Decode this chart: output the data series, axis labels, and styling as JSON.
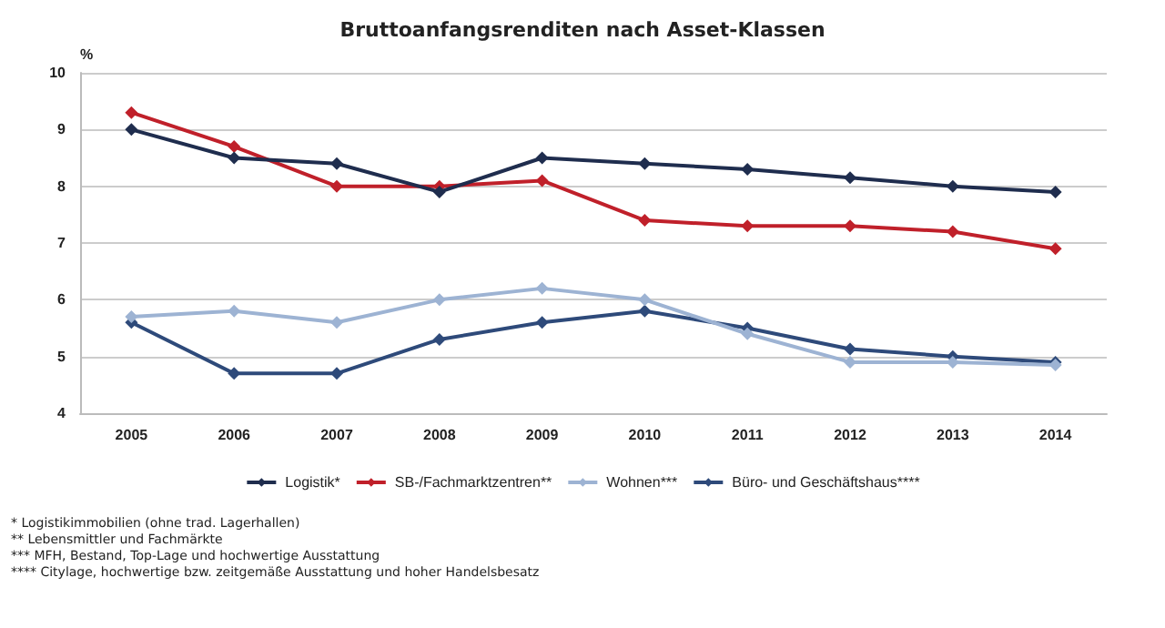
{
  "chart_data": {
    "type": "line",
    "title": "Bruttoanfangsrenditen nach Asset-Klassen",
    "ylabel": "%",
    "categories": [
      "2005",
      "2006",
      "2007",
      "2008",
      "2009",
      "2010",
      "2011",
      "2012",
      "2013",
      "2014"
    ],
    "series": [
      {
        "name": "Logistik*",
        "color": "#1f2d4e",
        "values": [
          9.0,
          8.5,
          8.4,
          7.9,
          8.5,
          8.4,
          8.3,
          8.15,
          8.0,
          7.9
        ]
      },
      {
        "name": "SB-/Fachmarktzentren**",
        "color": "#c0202a",
        "values": [
          9.3,
          8.7,
          8.0,
          8.0,
          8.1,
          7.4,
          7.3,
          7.3,
          7.2,
          6.9
        ]
      },
      {
        "name": "Wohnen***",
        "color": "#9db3d3",
        "values": [
          5.7,
          5.8,
          5.6,
          6.0,
          6.2,
          6.0,
          5.4,
          4.9,
          4.9,
          4.85
        ]
      },
      {
        "name": "Büro- und Geschäftshaus****",
        "color": "#2e4a7a",
        "values": [
          5.6,
          4.7,
          4.7,
          5.3,
          5.6,
          5.8,
          5.5,
          5.13,
          5.0,
          4.9
        ]
      }
    ],
    "ylim": [
      4,
      10
    ],
    "yticks": [
      4,
      5,
      6,
      7,
      8,
      9,
      10
    ],
    "grid": "y",
    "legend": "bottom",
    "marker": "diamond",
    "line_style": "solid",
    "annotations": [
      "* Logistikimmobilien (ohne trad. Lagerhallen)",
      "** Lebensmittler und Fachmärkte",
      "*** MFH, Bestand, Top-Lage und hochwertige Ausstattung",
      "**** Citylage, hochwertige bzw. zeitgemäße Ausstattung und hoher Handelsbesatz"
    ]
  }
}
